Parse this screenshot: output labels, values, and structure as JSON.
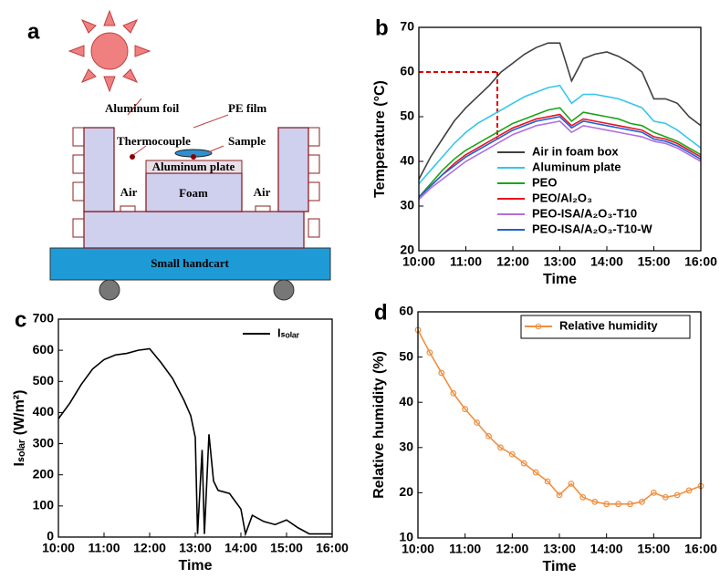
{
  "diagram": {
    "panel": "a",
    "labels": {
      "aluminum_foil": "Aluminum foil",
      "pe_film": "PE film",
      "thermocouple": "Thermocouple",
      "sample": "Sample",
      "aluminum_plate": "Aluminum plate",
      "foam": "Foam",
      "air_left": "Air",
      "air_right": "Air",
      "handcart": "Small handcart"
    }
  },
  "chart_data": [
    {
      "type": "line",
      "panel": "b",
      "x_label": "Time",
      "y_label": "Temperature (°C)",
      "x": [
        10,
        10.25,
        10.5,
        10.75,
        11,
        11.25,
        11.5,
        11.75,
        12,
        12.25,
        12.5,
        12.75,
        13,
        13.25,
        13.5,
        13.75,
        14,
        14.25,
        14.5,
        14.75,
        15,
        15.25,
        15.5,
        15.75,
        16
      ],
      "xlim": [
        10,
        16
      ],
      "xticks": [
        {
          "value": 10,
          "label": "10:00"
        },
        {
          "value": 11,
          "label": "11:00"
        },
        {
          "value": 12,
          "label": "12:00"
        },
        {
          "value": 13,
          "label": "13:00"
        },
        {
          "value": 14,
          "label": "14:00"
        },
        {
          "value": 15,
          "label": "15:00"
        },
        {
          "value": 16,
          "label": "16:00"
        }
      ],
      "ylim": [
        20,
        70
      ],
      "yticks": [
        20,
        30,
        40,
        50,
        60,
        70
      ],
      "legend": "lower right",
      "legend_frame": false,
      "reference": {
        "x": 11.67,
        "y": 60,
        "y_to": 45,
        "color": "#e00000"
      },
      "series": [
        {
          "name": "Air in foam box",
          "color": "#404040",
          "values": [
            36,
            41,
            45,
            49,
            52,
            54.5,
            57,
            60,
            62,
            64,
            65.5,
            66.5,
            66.5,
            58,
            63,
            64,
            64.5,
            63.5,
            62,
            60,
            54,
            54,
            53,
            50,
            48
          ]
        },
        {
          "name": "Aluminum plate",
          "color": "#35c6ee",
          "values": [
            35,
            38,
            41,
            44,
            46.5,
            48.5,
            50,
            51.5,
            53,
            54.5,
            55.5,
            56.5,
            57,
            53,
            55,
            55,
            54.5,
            54,
            53,
            52,
            49,
            48.5,
            47,
            45,
            43
          ]
        },
        {
          "name": "PEO",
          "color": "#1aa51a",
          "values": [
            32,
            35,
            38,
            40.5,
            42.5,
            44,
            45.5,
            47,
            48.5,
            49.5,
            50.5,
            51.5,
            52,
            49,
            51,
            50.5,
            50,
            49.5,
            48.5,
            48,
            46.5,
            45.5,
            44.5,
            43,
            41.5
          ]
        },
        {
          "name": "PEO/Al₂O₃",
          "color": "#e8141e",
          "values": [
            32,
            34.5,
            37,
            39.5,
            41.5,
            43,
            44.5,
            46,
            47.5,
            48.5,
            49.5,
            50,
            50.5,
            48,
            49.5,
            49,
            48.5,
            48,
            47.5,
            47,
            45.5,
            45,
            44,
            42.5,
            41
          ]
        },
        {
          "name": "PEO-ISA/A₂O₃-T10",
          "color": "#b06ee0",
          "values": [
            31.5,
            34,
            36,
            38,
            40,
            41.5,
            43,
            44.5,
            46,
            47,
            48,
            48.5,
            49,
            46.5,
            48,
            47.5,
            47,
            46.5,
            46,
            45.5,
            44.5,
            44,
            43,
            41.5,
            40
          ]
        },
        {
          "name": "PEO-ISA/A₂O₃-T10-W",
          "color": "#2060d8",
          "values": [
            32,
            34.5,
            37,
            39,
            41,
            42.5,
            44,
            45.5,
            47,
            48,
            49,
            49.5,
            50,
            47.5,
            49,
            48.5,
            48,
            47.5,
            47,
            46.5,
            45,
            44.5,
            43.5,
            42,
            40.5
          ]
        }
      ]
    },
    {
      "type": "line",
      "panel": "c",
      "x_label": "Time",
      "y_label": "Iₛₒₗₐᵣ (W/m²)",
      "x": [
        10,
        10.25,
        10.5,
        10.75,
        11,
        11.25,
        11.5,
        11.75,
        12,
        12.25,
        12.5,
        12.75,
        12.9,
        13.0,
        13.05,
        13.15,
        13.2,
        13.3,
        13.4,
        13.5,
        13.75,
        14,
        14.1,
        14.25,
        14.5,
        14.75,
        15,
        15.25,
        15.5,
        15.75,
        16
      ],
      "xlim": [
        10,
        16
      ],
      "xticks": [
        {
          "value": 10,
          "label": "10:00"
        },
        {
          "value": 11,
          "label": "11:00"
        },
        {
          "value": 12,
          "label": "12:00"
        },
        {
          "value": 13,
          "label": "13:00"
        },
        {
          "value": 14,
          "label": "14:00"
        },
        {
          "value": 15,
          "label": "15:00"
        },
        {
          "value": 16,
          "label": "16:00"
        }
      ],
      "ylim": [
        0,
        700
      ],
      "yticks": [
        0,
        100,
        200,
        300,
        400,
        500,
        600,
        700
      ],
      "legend": "upper right",
      "legend_frame": false,
      "series": [
        {
          "name": "Iₛₒₗₐᵣ",
          "color": "#000000",
          "values": [
            380,
            430,
            490,
            540,
            570,
            585,
            590,
            600,
            605,
            560,
            510,
            440,
            390,
            320,
            10,
            280,
            10,
            330,
            180,
            150,
            140,
            90,
            10,
            70,
            50,
            40,
            55,
            30,
            10,
            10,
            10
          ]
        }
      ]
    },
    {
      "type": "line",
      "panel": "d",
      "x_label": "Time",
      "y_label": "Relative humidity (%)",
      "marker": "circle",
      "x": [
        10,
        10.25,
        10.5,
        10.75,
        11,
        11.25,
        11.5,
        11.75,
        12,
        12.25,
        12.5,
        12.75,
        13,
        13.25,
        13.5,
        13.75,
        14,
        14.25,
        14.5,
        14.75,
        15,
        15.25,
        15.5,
        15.75,
        16
      ],
      "xlim": [
        10,
        16
      ],
      "xticks": [
        {
          "value": 10,
          "label": "10:00"
        },
        {
          "value": 11,
          "label": "11:00"
        },
        {
          "value": 12,
          "label": "12:00"
        },
        {
          "value": 13,
          "label": "13:00"
        },
        {
          "value": 14,
          "label": "14:00"
        },
        {
          "value": 15,
          "label": "15:00"
        },
        {
          "value": 16,
          "label": "16:00"
        }
      ],
      "ylim": [
        10,
        60
      ],
      "yticks": [
        10,
        20,
        30,
        40,
        50,
        60
      ],
      "legend": "upper right",
      "legend_frame": true,
      "series": [
        {
          "name": "Relative humidity",
          "color": "#f09040",
          "values": [
            56,
            51,
            46.5,
            42,
            38.5,
            35.5,
            32.5,
            30,
            28.5,
            26.5,
            24.5,
            22.5,
            19.5,
            22,
            19,
            18,
            17.5,
            17.5,
            17.5,
            18,
            20,
            19,
            19.5,
            20.5,
            21.5
          ]
        }
      ]
    }
  ]
}
